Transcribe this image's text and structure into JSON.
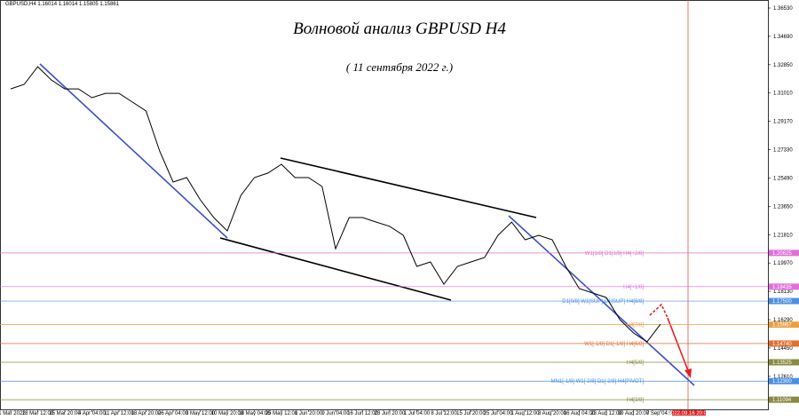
{
  "header": "GBPUSD,H4  1.16014 1.16014 1.15805 1.15861",
  "chart_data": {
    "type": "line",
    "title": "Волновой анализ GBPUSD H4",
    "subtitle": "( 11 сентября 2022 г.)",
    "categories": [
      "11 Mar 2022",
      null,
      "18 Mar 12:00",
      null,
      "25 Mar 20:00",
      null,
      "4 Apr 04:00",
      null,
      "11 Apr 12:00",
      null,
      "18 Apr 20:00",
      null,
      "26 Apr 04:00",
      null,
      "3 May 12:00",
      null,
      "10 May 20:00",
      null,
      "18 May 04:00",
      null,
      "25 May 12:00",
      null,
      "1 Jun 20:00",
      null,
      "9 Jun 04:00",
      null,
      "16 Jun 12:00",
      null,
      "23 Jun 20:00",
      null,
      "1 Jul 04:00",
      null,
      "8 Jul 12:00",
      null,
      "15 Jul 20:00",
      null,
      "25 Jul 04:00",
      null,
      "1 Aug 12:00",
      null,
      "8 Aug 20:00",
      null,
      "16 Aug 04:00",
      null,
      "23 Aug 12:00",
      null,
      "30 Aug 20:00",
      null,
      "7 Sep 04:00",
      null
    ],
    "series": [
      {
        "color": "#000000",
        "values": [
          1.3128,
          1.3157,
          1.3272,
          1.3186,
          1.3128,
          1.3128,
          1.3071,
          1.3099,
          1.3099,
          1.3042,
          1.2984,
          1.2725,
          1.2523,
          1.2552,
          1.2408,
          1.2292,
          1.2206,
          1.2436,
          1.2552,
          1.2581,
          1.2638,
          1.2552,
          1.2552,
          1.2494,
          1.209,
          1.2292,
          1.2292,
          1.2263,
          1.2235,
          1.2177,
          1.1975,
          1.2004,
          1.186,
          1.1975,
          1.2004,
          1.2033,
          1.2177,
          1.2263,
          1.2148,
          1.2177,
          1.2148,
          1.1975,
          1.1831,
          1.1802,
          1.1773,
          1.1629,
          1.1543,
          1.1485,
          1.16,
          null
        ]
      }
    ],
    "ylim": [
      1.1041,
      1.3705
    ],
    "yticks": [
      {
        "value": 1.3653,
        "label": "1.36530"
      },
      {
        "value": 1.3469,
        "label": "1.34690"
      },
      {
        "value": 1.3285,
        "label": "1.32850"
      },
      {
        "value": 1.3101,
        "label": "1.31010"
      },
      {
        "value": 1.2917,
        "label": "1.29170"
      },
      {
        "value": 1.2733,
        "label": "1.27330"
      },
      {
        "value": 1.2549,
        "label": "1.25490"
      },
      {
        "value": 1.2365,
        "label": "1.23650"
      },
      {
        "value": 1.2181,
        "label": "1.21810"
      },
      {
        "value": 1.1997,
        "label": "1.19970"
      },
      {
        "value": 1.1813,
        "label": "1.18130"
      },
      {
        "value": 1.1629,
        "label": "1.16290"
      },
      {
        "value": 1.1445,
        "label": "1.14450"
      },
      {
        "value": 1.1261,
        "label": "1.12610"
      }
    ],
    "levels": [
      {
        "value": 1.20625,
        "value_label": "1.20625",
        "text": "W1[1/8] D1[1/8] H4[+2/8]",
        "color": "#e070d8"
      },
      {
        "value": 1.18435,
        "value_label": "1.18435",
        "text": "H4[+1/8]",
        "color": "#e070d8"
      },
      {
        "value": 1.175,
        "value_label": "1.17500",
        "text": "D1[0/8] W1[SUP] D1[SUP] H4[8/8]",
        "color": "#4a90e2"
      },
      {
        "value": 1.15967,
        "value_label": "1.15967",
        "text": "H4[7/8]",
        "color": "#e8a040"
      },
      {
        "value": 1.1474,
        "value_label": "1.14740",
        "text": "W1[-1/8] D1[-1/8] H4[6/8]",
        "color": "#e07030"
      },
      {
        "value": 1.13525,
        "value_label": "1.13525",
        "text": "H4[5/8]",
        "color": "#8a8a40"
      },
      {
        "value": 1.123,
        "value_label": "1.12300",
        "text": "MN1[-1/8] W1[-2/8] D1[-2/8] H4[PIVOT]",
        "color": "#4a90e2"
      },
      {
        "value": 1.11094,
        "value_label": "1.11094",
        "text": "H4[3/8]",
        "color": "#8a8a40"
      }
    ],
    "future_label": "2022.09.16 20:00"
  }
}
